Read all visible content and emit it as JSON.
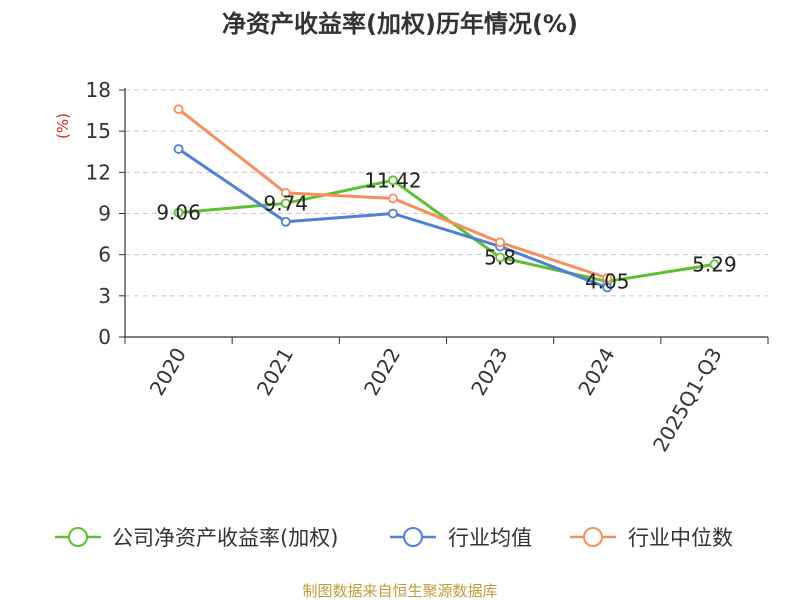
{
  "chart_data": {
    "type": "line",
    "title": "净资产收益率(加权)历年情况(%)",
    "ylabel": "(%)",
    "xlabel": "",
    "ylim": [
      0,
      18
    ],
    "yticks": [
      0,
      3,
      6,
      9,
      12,
      15,
      18
    ],
    "categories": [
      "2020",
      "2021",
      "2022",
      "2023",
      "2024",
      "2025Q1-Q3"
    ],
    "grid": true,
    "legend_position": "bottom",
    "series": [
      {
        "name": "公司净资产收益率(加权)",
        "color": "#5cc12f",
        "values": [
          9.06,
          9.74,
          11.42,
          5.8,
          4.05,
          5.29
        ],
        "labels": [
          "9.06",
          "9.74",
          "11.42",
          "5.8",
          "4.05",
          "5.29"
        ]
      },
      {
        "name": "行业均值",
        "color": "#4f80d8",
        "values": [
          13.7,
          8.4,
          9.0,
          6.6,
          3.6,
          null
        ]
      },
      {
        "name": "行业中位数",
        "color": "#f88f5a",
        "values": [
          16.6,
          10.5,
          10.1,
          6.9,
          4.3,
          null
        ]
      }
    ],
    "source": "制图数据来自恒生聚源数据库",
    "ylabel_color": "#e02020",
    "source_color": "#c49a3a"
  }
}
